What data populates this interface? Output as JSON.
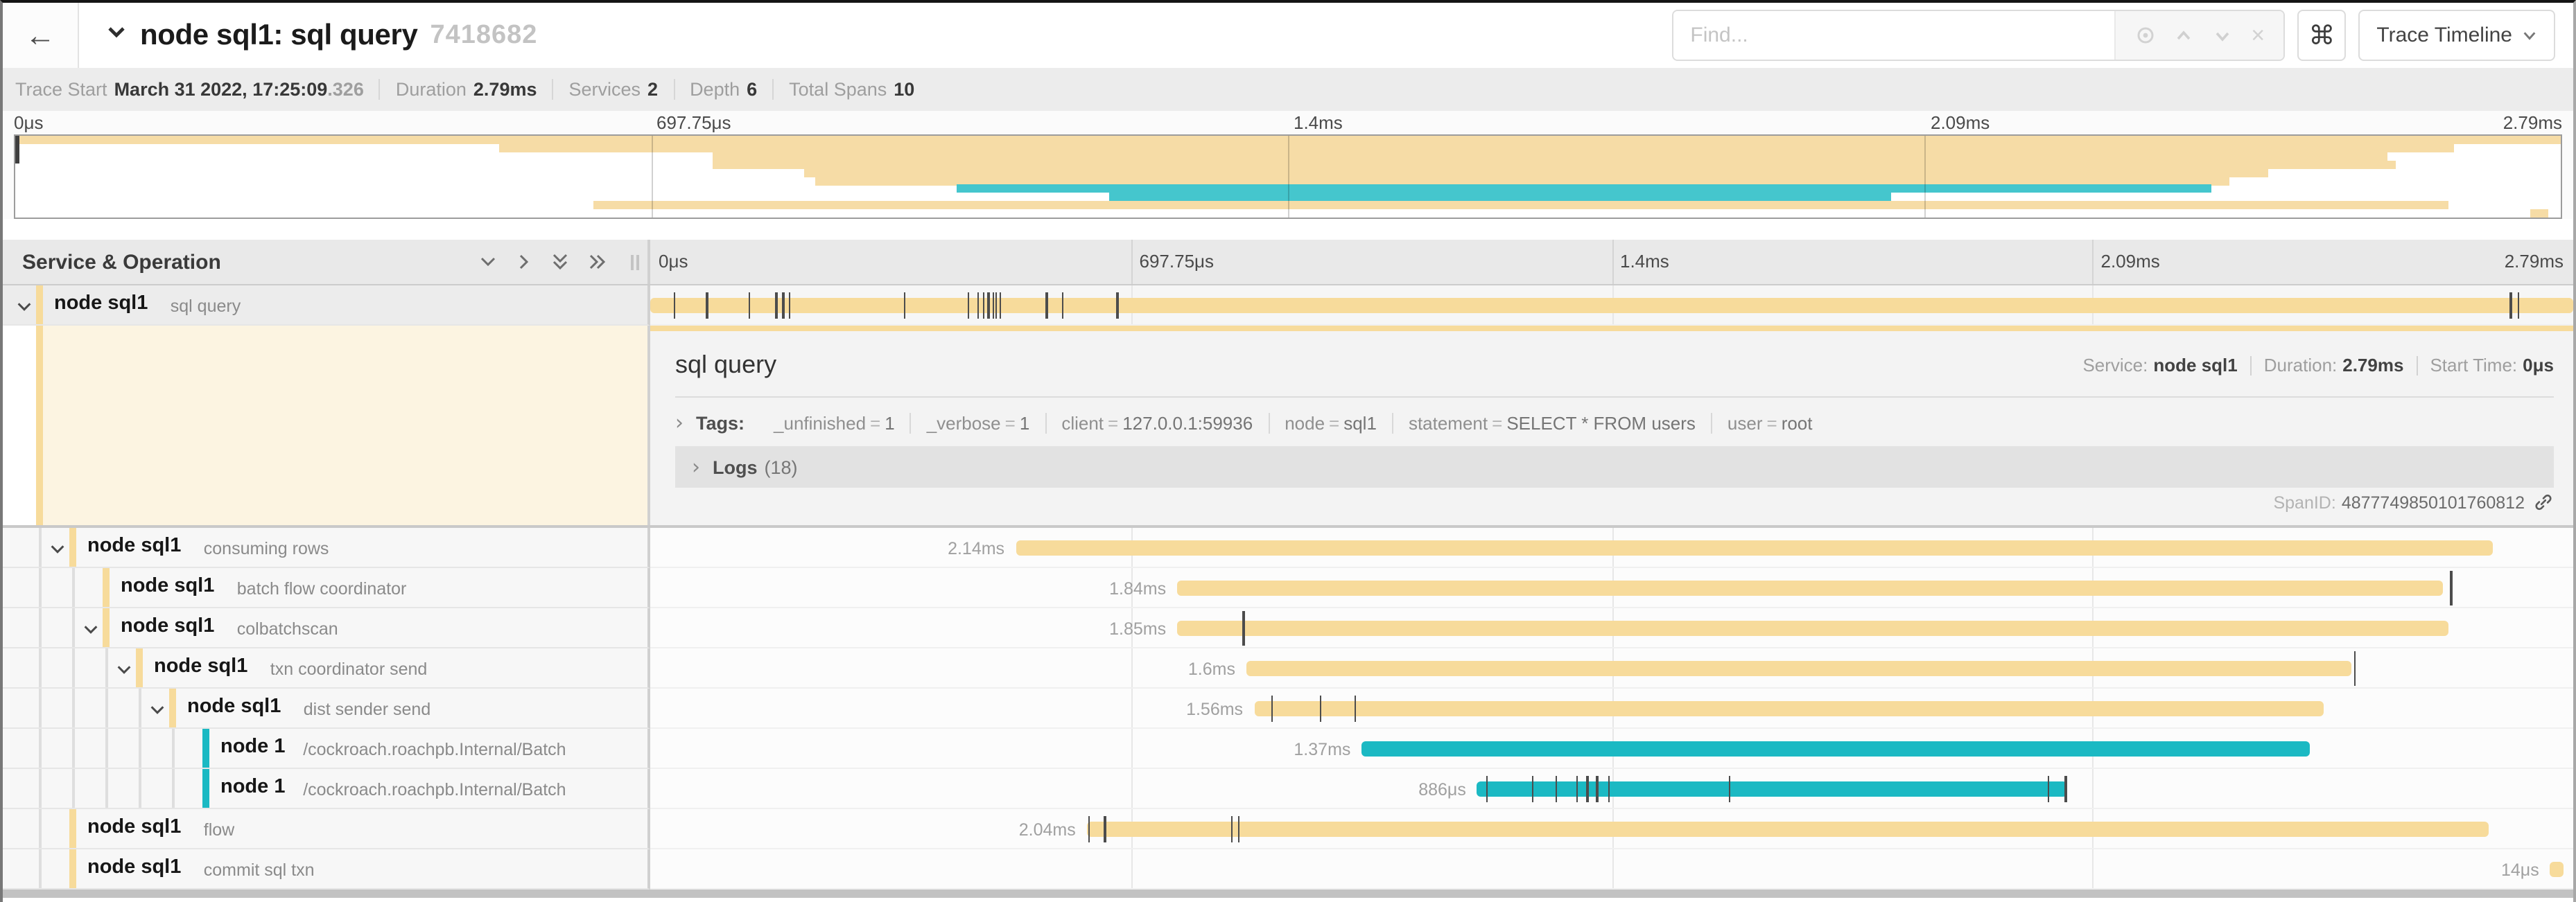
{
  "header": {
    "back_label": "←",
    "title": "node sql1: sql query",
    "trace_id": "7418682",
    "find_placeholder": "Find...",
    "keyboard_shortcut": "⌘",
    "view_selector": "Trace Timeline"
  },
  "trace_meta": {
    "trace_start_label": "Trace Start",
    "trace_start": "March 31 2022, 17:25:09",
    "trace_start_fraction": ".326",
    "duration_label": "Duration",
    "duration": "2.79ms",
    "services_label": "Services",
    "services": "2",
    "depth_label": "Depth",
    "depth": "6",
    "total_spans_label": "Total Spans",
    "total_spans": "10"
  },
  "timeline": {
    "ticks": [
      "0μs",
      "697.75μs",
      "1.4ms",
      "2.09ms",
      "2.79ms"
    ],
    "tick_positions": [
      0,
      0.25,
      0.5,
      0.75,
      1
    ]
  },
  "tree_header": {
    "title": "Service & Operation"
  },
  "colors": {
    "tan": "#F7DB9B",
    "teal": "#1BB9C3",
    "tan_soft": "#F6DCA6",
    "teal_soft": "#45C6CD"
  },
  "spans": [
    {
      "service": "node sql1",
      "operation": "sql query",
      "depth": 0,
      "has_children": true,
      "color": "tan",
      "start": 0,
      "end": 1,
      "label": "",
      "selected": true,
      "ticks": [
        0.012,
        0.029,
        0.051,
        0.065,
        0.0687,
        0.072,
        0.132,
        0.165,
        0.17,
        0.173,
        0.1755,
        0.178,
        0.1795,
        0.1817,
        0.2058,
        0.214,
        0.2424,
        0.967,
        0.971
      ],
      "tall_ticks": []
    },
    {
      "service": "node sql1",
      "operation": "consuming rows",
      "depth": 1,
      "has_children": true,
      "color": "tan",
      "start": 0.19,
      "end": 0.958,
      "label": "2.14ms",
      "ticks": [],
      "tall_ticks": []
    },
    {
      "service": "node sql1",
      "operation": "batch flow coordinator",
      "depth": 2,
      "has_children": false,
      "color": "tan",
      "start": 0.274,
      "end": 0.932,
      "label": "1.84ms",
      "ticks": [],
      "tall_ticks": [
        0.936
      ]
    },
    {
      "service": "node sql1",
      "operation": "colbatchscan",
      "depth": 2,
      "has_children": true,
      "color": "tan",
      "start": 0.274,
      "end": 0.935,
      "label": "1.85ms",
      "ticks": [],
      "tall_ticks": [
        0.308
      ]
    },
    {
      "service": "node sql1",
      "operation": "txn coordinator send",
      "depth": 3,
      "has_children": true,
      "color": "tan",
      "start": 0.31,
      "end": 0.885,
      "label": "1.6ms",
      "ticks": [],
      "tall_ticks": [
        0.886
      ]
    },
    {
      "service": "node sql1",
      "operation": "dist sender send",
      "depth": 4,
      "has_children": true,
      "color": "tan",
      "start": 0.314,
      "end": 0.87,
      "label": "1.56ms",
      "ticks": [
        0.323,
        0.348,
        0.366
      ],
      "tall_ticks": []
    },
    {
      "service": "node 1",
      "operation": "/cockroach.roachpb.Internal/Batch",
      "depth": 5,
      "has_children": false,
      "color": "teal",
      "start": 0.37,
      "end": 0.863,
      "label": "1.37ms",
      "ticks": [],
      "tall_ticks": []
    },
    {
      "service": "node 1",
      "operation": "/cockroach.roachpb.Internal/Batch",
      "depth": 5,
      "has_children": false,
      "color": "teal",
      "start": 0.43,
      "end": 0.737,
      "label": "886μs",
      "ticks": [
        0.4345,
        0.4585,
        0.4705,
        0.4815,
        0.487,
        0.492,
        0.498,
        0.561,
        0.7265,
        0.7355
      ],
      "tall_ticks": []
    },
    {
      "service": "node sql1",
      "operation": "flow",
      "depth": 1,
      "has_children": false,
      "color": "tan",
      "start": 0.227,
      "end": 0.956,
      "label": "2.04ms",
      "ticks": [
        0.2275,
        0.236,
        0.302,
        0.3055
      ],
      "tall_ticks": []
    },
    {
      "service": "node sql1",
      "operation": "commit sql txn",
      "depth": 1,
      "has_children": false,
      "color": "tan",
      "start": 0.988,
      "end": 0.995,
      "label": "14μs",
      "ticks": [],
      "tall_ticks": []
    }
  ],
  "detail": {
    "title": "sql query",
    "service_label": "Service:",
    "service": "node sql1",
    "duration_label": "Duration:",
    "duration": "2.79ms",
    "start_label": "Start Time:",
    "start": "0μs",
    "tags_label": "Tags:",
    "tags": [
      {
        "key": "_unfinished",
        "value": "1"
      },
      {
        "key": "_verbose",
        "value": "1"
      },
      {
        "key": "client",
        "value": "127.0.0.1:59936"
      },
      {
        "key": "node",
        "value": "sql1"
      },
      {
        "key": "statement",
        "value": "SELECT * FROM users"
      },
      {
        "key": "user",
        "value": "root"
      }
    ],
    "logs_label": "Logs",
    "logs_count": "(18)",
    "span_id_label": "SpanID:",
    "span_id": "4877749850101760812"
  }
}
